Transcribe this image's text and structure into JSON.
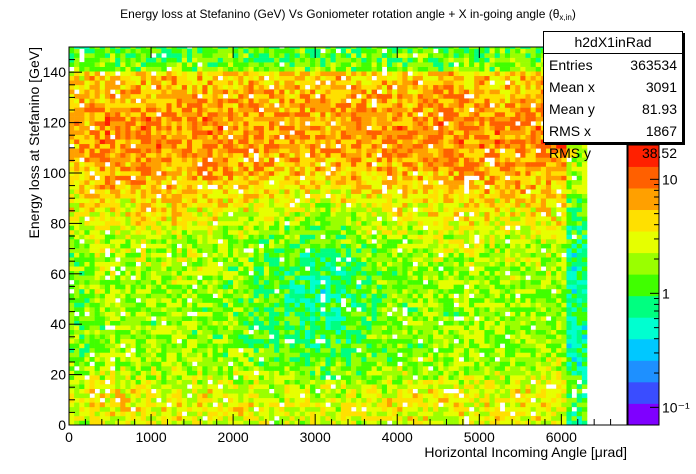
{
  "chart_data": {
    "type": "heatmap",
    "title": {
      "main": "Energy loss at Stefanino (GeV) Vs Goniometer rotation angle + X in-going angle (θ",
      "sub": "x,in",
      "close": ")"
    },
    "xlabel": "Horizontal Incoming Angle [μrad]",
    "ylabel": "Energy loss at Stefanino [GeV]",
    "xlim": [
      0,
      6800
    ],
    "ylim": [
      0,
      150
    ],
    "x_ticks": [
      "0",
      "1000",
      "2000",
      "3000",
      "4000",
      "5000",
      "6000"
    ],
    "y_ticks": [
      "0",
      "20",
      "40",
      "60",
      "80",
      "100",
      "120",
      "140"
    ],
    "x_tick_values": [
      0,
      1000,
      2000,
      3000,
      4000,
      5000,
      6000
    ],
    "y_tick_values": [
      0,
      20,
      40,
      60,
      80,
      100,
      120,
      140
    ],
    "colorbar": {
      "scale": "log",
      "range": [
        0.07,
        20
      ],
      "labels": [
        {
          "text": "10",
          "value": 10
        },
        {
          "text": "1",
          "value": 1
        },
        {
          "text": "10⁻¹",
          "value": 0.1
        }
      ],
      "colors": [
        "#7f00ff",
        "#3a4dff",
        "#1e90ff",
        "#00c8ff",
        "#00ffd0",
        "#00ff80",
        "#40ff00",
        "#9aff00",
        "#e6ff00",
        "#ffe000",
        "#ffa000",
        "#ff6000",
        "#ff2000"
      ]
    },
    "grid": false,
    "data_extent": {
      "x": [
        0,
        6300
      ],
      "y": [
        0,
        150
      ]
    },
    "stats": {
      "name": "h2dX1inRad",
      "entries_label": "Entries",
      "entries": "363534",
      "meanx_label": "Mean x",
      "meanx": "3091",
      "meany_label": "Mean y",
      "meany": "81.93",
      "rmsx_label": "RMS x",
      "rmsx": "1867",
      "rmsy_label": "RMS y",
      "rmsy": "38.52"
    }
  }
}
